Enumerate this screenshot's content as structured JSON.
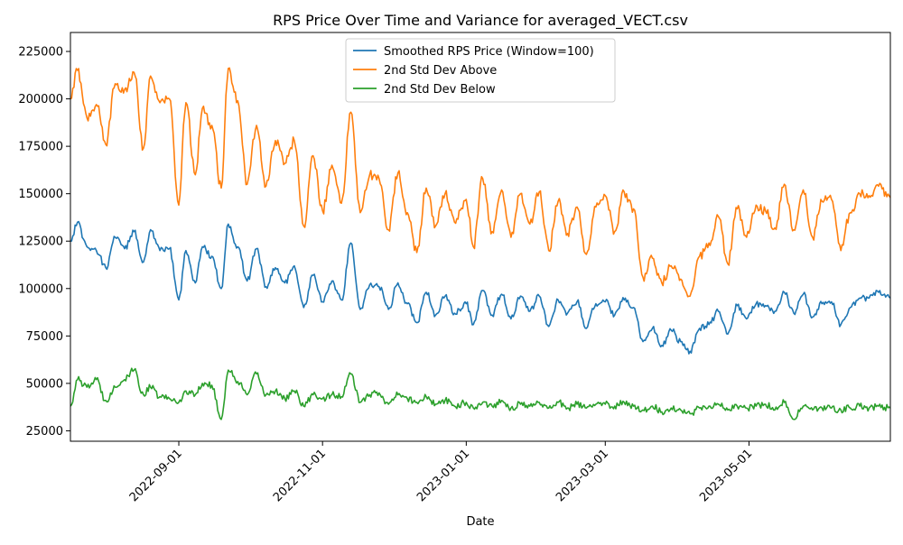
{
  "chart_data": {
    "type": "line",
    "title": "RPS Price Over Time and Variance for averaged_VECT.csv",
    "xlabel": "Date",
    "ylabel": "",
    "x_type": "date",
    "xlim": [
      "2022-07-17",
      "2023-06-30"
    ],
    "ylim": [
      19500,
      235000
    ],
    "x_ticks": [
      "2022-09-01",
      "2022-11-01",
      "2023-01-01",
      "2023-03-01",
      "2023-05-01"
    ],
    "y_ticks": [
      25000,
      50000,
      75000,
      100000,
      125000,
      150000,
      175000,
      200000,
      225000
    ],
    "grid": false,
    "legend_position": "top-center",
    "series": [
      {
        "name": "Smoothed RPS Price (Window=100)",
        "color": "#1f77b4",
        "points": [
          [
            "2022-07-17",
            125000
          ],
          [
            "2022-07-20",
            135000
          ],
          [
            "2022-07-24",
            122000
          ],
          [
            "2022-07-28",
            120000
          ],
          [
            "2022-08-01",
            111000
          ],
          [
            "2022-08-05",
            127000
          ],
          [
            "2022-08-09",
            121000
          ],
          [
            "2022-08-13",
            130000
          ],
          [
            "2022-08-17",
            114000
          ],
          [
            "2022-08-20",
            131000
          ],
          [
            "2022-08-24",
            120000
          ],
          [
            "2022-08-28",
            121000
          ],
          [
            "2022-09-01",
            94000
          ],
          [
            "2022-09-04",
            120000
          ],
          [
            "2022-09-08",
            103000
          ],
          [
            "2022-09-11",
            122000
          ],
          [
            "2022-09-15",
            117000
          ],
          [
            "2022-09-19",
            100000
          ],
          [
            "2022-09-22",
            134000
          ],
          [
            "2022-09-26",
            122000
          ],
          [
            "2022-09-30",
            104000
          ],
          [
            "2022-10-04",
            121000
          ],
          [
            "2022-10-08",
            101000
          ],
          [
            "2022-10-12",
            111000
          ],
          [
            "2022-10-16",
            103000
          ],
          [
            "2022-10-20",
            112000
          ],
          [
            "2022-10-24",
            90000
          ],
          [
            "2022-10-28",
            107000
          ],
          [
            "2022-11-01",
            93000
          ],
          [
            "2022-11-05",
            104000
          ],
          [
            "2022-11-09",
            94000
          ],
          [
            "2022-11-13",
            124000
          ],
          [
            "2022-11-17",
            89000
          ],
          [
            "2022-11-21",
            102000
          ],
          [
            "2022-11-25",
            101000
          ],
          [
            "2022-11-29",
            89000
          ],
          [
            "2022-12-03",
            103000
          ],
          [
            "2022-12-07",
            92000
          ],
          [
            "2022-12-11",
            82000
          ],
          [
            "2022-12-15",
            98000
          ],
          [
            "2022-12-19",
            86000
          ],
          [
            "2022-12-23",
            96000
          ],
          [
            "2022-12-27",
            87000
          ],
          [
            "2023-01-01",
            92000
          ],
          [
            "2023-01-04",
            81000
          ],
          [
            "2023-01-08",
            99000
          ],
          [
            "2023-01-12",
            86000
          ],
          [
            "2023-01-16",
            97000
          ],
          [
            "2023-01-20",
            84000
          ],
          [
            "2023-01-24",
            96000
          ],
          [
            "2023-01-28",
            88000
          ],
          [
            "2023-02-01",
            96000
          ],
          [
            "2023-02-05",
            80000
          ],
          [
            "2023-02-09",
            94000
          ],
          [
            "2023-02-13",
            87000
          ],
          [
            "2023-02-17",
            93000
          ],
          [
            "2023-02-21",
            79000
          ],
          [
            "2023-02-25",
            92000
          ],
          [
            "2023-03-01",
            93000
          ],
          [
            "2023-03-05",
            86000
          ],
          [
            "2023-03-09",
            94000
          ],
          [
            "2023-03-13",
            90000
          ],
          [
            "2023-03-17",
            72000
          ],
          [
            "2023-03-21",
            79000
          ],
          [
            "2023-03-25",
            70000
          ],
          [
            "2023-03-29",
            78000
          ],
          [
            "2023-04-02",
            72000
          ],
          [
            "2023-04-06",
            67000
          ],
          [
            "2023-04-10",
            79000
          ],
          [
            "2023-04-14",
            81000
          ],
          [
            "2023-04-18",
            88000
          ],
          [
            "2023-04-22",
            76000
          ],
          [
            "2023-04-26",
            91000
          ],
          [
            "2023-04-30",
            84000
          ],
          [
            "2023-05-04",
            92000
          ],
          [
            "2023-05-08",
            91000
          ],
          [
            "2023-05-12",
            88000
          ],
          [
            "2023-05-16",
            98000
          ],
          [
            "2023-05-20",
            87000
          ],
          [
            "2023-05-24",
            97000
          ],
          [
            "2023-05-28",
            85000
          ],
          [
            "2023-06-01",
            92000
          ],
          [
            "2023-06-05",
            93000
          ],
          [
            "2023-06-09",
            81000
          ],
          [
            "2023-06-13",
            90000
          ],
          [
            "2023-06-17",
            95000
          ],
          [
            "2023-06-21",
            95000
          ],
          [
            "2023-06-25",
            98000
          ],
          [
            "2023-06-30",
            95000
          ]
        ]
      },
      {
        "name": "2nd Std Dev Above",
        "color": "#ff7f0e",
        "points": [
          [
            "2022-07-17",
            200000
          ],
          [
            "2022-07-20",
            215000
          ],
          [
            "2022-07-24",
            190000
          ],
          [
            "2022-07-28",
            197000
          ],
          [
            "2022-08-01",
            176000
          ],
          [
            "2022-08-05",
            208000
          ],
          [
            "2022-08-09",
            205000
          ],
          [
            "2022-08-13",
            214000
          ],
          [
            "2022-08-17",
            174000
          ],
          [
            "2022-08-20",
            212000
          ],
          [
            "2022-08-24",
            198000
          ],
          [
            "2022-08-28",
            200000
          ],
          [
            "2022-09-01",
            144000
          ],
          [
            "2022-09-04",
            198000
          ],
          [
            "2022-09-08",
            160000
          ],
          [
            "2022-09-11",
            195000
          ],
          [
            "2022-09-15",
            186000
          ],
          [
            "2022-09-19",
            153000
          ],
          [
            "2022-09-22",
            216000
          ],
          [
            "2022-09-26",
            199000
          ],
          [
            "2022-09-30",
            155000
          ],
          [
            "2022-10-04",
            186000
          ],
          [
            "2022-10-08",
            154000
          ],
          [
            "2022-10-12",
            178000
          ],
          [
            "2022-10-16",
            166000
          ],
          [
            "2022-10-20",
            178000
          ],
          [
            "2022-10-24",
            133000
          ],
          [
            "2022-10-28",
            170000
          ],
          [
            "2022-11-01",
            141000
          ],
          [
            "2022-11-05",
            165000
          ],
          [
            "2022-11-09",
            145000
          ],
          [
            "2022-11-13",
            193000
          ],
          [
            "2022-11-17",
            140000
          ],
          [
            "2022-11-21",
            160000
          ],
          [
            "2022-11-25",
            158000
          ],
          [
            "2022-11-29",
            131000
          ],
          [
            "2022-12-03",
            161000
          ],
          [
            "2022-12-07",
            140000
          ],
          [
            "2022-12-11",
            119000
          ],
          [
            "2022-12-15",
            153000
          ],
          [
            "2022-12-19",
            133000
          ],
          [
            "2022-12-23",
            150000
          ],
          [
            "2022-12-27",
            135000
          ],
          [
            "2023-01-01",
            147000
          ],
          [
            "2023-01-04",
            122000
          ],
          [
            "2023-01-08",
            158000
          ],
          [
            "2023-01-12",
            130000
          ],
          [
            "2023-01-16",
            152000
          ],
          [
            "2023-01-20",
            127000
          ],
          [
            "2023-01-24",
            150000
          ],
          [
            "2023-01-28",
            134000
          ],
          [
            "2023-02-01",
            151000
          ],
          [
            "2023-02-05",
            120000
          ],
          [
            "2023-02-09",
            146000
          ],
          [
            "2023-02-13",
            129000
          ],
          [
            "2023-02-17",
            143000
          ],
          [
            "2023-02-21",
            118000
          ],
          [
            "2023-02-25",
            143000
          ],
          [
            "2023-03-01",
            149000
          ],
          [
            "2023-03-05",
            130000
          ],
          [
            "2023-03-09",
            151000
          ],
          [
            "2023-03-13",
            142000
          ],
          [
            "2023-03-17",
            106000
          ],
          [
            "2023-03-21",
            116000
          ],
          [
            "2023-03-25",
            103000
          ],
          [
            "2023-03-29",
            112000
          ],
          [
            "2023-04-02",
            105000
          ],
          [
            "2023-04-06",
            96000
          ],
          [
            "2023-04-10",
            117000
          ],
          [
            "2023-04-14",
            124000
          ],
          [
            "2023-04-18",
            138000
          ],
          [
            "2023-04-22",
            113000
          ],
          [
            "2023-04-26",
            142000
          ],
          [
            "2023-04-30",
            127000
          ],
          [
            "2023-05-04",
            144000
          ],
          [
            "2023-05-08",
            141000
          ],
          [
            "2023-05-12",
            132000
          ],
          [
            "2023-05-16",
            155000
          ],
          [
            "2023-05-20",
            131000
          ],
          [
            "2023-05-24",
            152000
          ],
          [
            "2023-05-28",
            127000
          ],
          [
            "2023-06-01",
            146000
          ],
          [
            "2023-06-05",
            147000
          ],
          [
            "2023-06-09",
            120000
          ],
          [
            "2023-06-13",
            140000
          ],
          [
            "2023-06-17",
            150000
          ],
          [
            "2023-06-21",
            149000
          ],
          [
            "2023-06-25",
            154000
          ],
          [
            "2023-06-30",
            148000
          ]
        ]
      },
      {
        "name": "2nd Std Dev Below",
        "color": "#2ca02c",
        "points": [
          [
            "2022-07-17",
            38000
          ],
          [
            "2022-07-20",
            52000
          ],
          [
            "2022-07-24",
            48000
          ],
          [
            "2022-07-28",
            52000
          ],
          [
            "2022-08-01",
            41000
          ],
          [
            "2022-08-05",
            48000
          ],
          [
            "2022-08-09",
            52000
          ],
          [
            "2022-08-13",
            57000
          ],
          [
            "2022-08-17",
            44000
          ],
          [
            "2022-08-20",
            48000
          ],
          [
            "2022-08-24",
            43000
          ],
          [
            "2022-08-28",
            42000
          ],
          [
            "2022-09-01",
            40000
          ],
          [
            "2022-09-04",
            46000
          ],
          [
            "2022-09-08",
            44000
          ],
          [
            "2022-09-11",
            50000
          ],
          [
            "2022-09-15",
            49000
          ],
          [
            "2022-09-19",
            31000
          ],
          [
            "2022-09-22",
            57000
          ],
          [
            "2022-09-26",
            51000
          ],
          [
            "2022-09-30",
            44000
          ],
          [
            "2022-10-04",
            55000
          ],
          [
            "2022-10-08",
            44000
          ],
          [
            "2022-10-12",
            46000
          ],
          [
            "2022-10-16",
            42000
          ],
          [
            "2022-10-20",
            46000
          ],
          [
            "2022-10-24",
            38000
          ],
          [
            "2022-10-28",
            44000
          ],
          [
            "2022-11-01",
            42000
          ],
          [
            "2022-11-05",
            44000
          ],
          [
            "2022-11-09",
            43000
          ],
          [
            "2022-11-13",
            55000
          ],
          [
            "2022-11-17",
            40000
          ],
          [
            "2022-11-21",
            44000
          ],
          [
            "2022-11-25",
            45000
          ],
          [
            "2022-11-29",
            39000
          ],
          [
            "2022-12-03",
            44000
          ],
          [
            "2022-12-07",
            42000
          ],
          [
            "2022-12-11",
            40000
          ],
          [
            "2022-12-15",
            43000
          ],
          [
            "2022-12-19",
            39000
          ],
          [
            "2022-12-23",
            41000
          ],
          [
            "2022-12-27",
            38000
          ],
          [
            "2023-01-01",
            40000
          ],
          [
            "2023-01-04",
            37000
          ],
          [
            "2023-01-08",
            40000
          ],
          [
            "2023-01-12",
            38000
          ],
          [
            "2023-01-16",
            41000
          ],
          [
            "2023-01-20",
            37000
          ],
          [
            "2023-01-24",
            39000
          ],
          [
            "2023-01-28",
            38000
          ],
          [
            "2023-02-01",
            40000
          ],
          [
            "2023-02-05",
            37000
          ],
          [
            "2023-02-09",
            40000
          ],
          [
            "2023-02-13",
            37000
          ],
          [
            "2023-02-17",
            39000
          ],
          [
            "2023-02-21",
            37000
          ],
          [
            "2023-02-25",
            39000
          ],
          [
            "2023-03-01",
            39000
          ],
          [
            "2023-03-05",
            38000
          ],
          [
            "2023-03-09",
            40000
          ],
          [
            "2023-03-13",
            38000
          ],
          [
            "2023-03-17",
            36000
          ],
          [
            "2023-03-21",
            38000
          ],
          [
            "2023-03-25",
            35000
          ],
          [
            "2023-03-29",
            37000
          ],
          [
            "2023-04-02",
            36000
          ],
          [
            "2023-04-06",
            34000
          ],
          [
            "2023-04-10",
            37000
          ],
          [
            "2023-04-14",
            38000
          ],
          [
            "2023-04-18",
            39000
          ],
          [
            "2023-04-22",
            36000
          ],
          [
            "2023-04-26",
            38000
          ],
          [
            "2023-04-30",
            37000
          ],
          [
            "2023-05-04",
            38000
          ],
          [
            "2023-05-08",
            39000
          ],
          [
            "2023-05-12",
            36000
          ],
          [
            "2023-05-16",
            40000
          ],
          [
            "2023-05-20",
            31000
          ],
          [
            "2023-05-24",
            38000
          ],
          [
            "2023-05-28",
            36000
          ],
          [
            "2023-06-01",
            37000
          ],
          [
            "2023-06-05",
            37000
          ],
          [
            "2023-06-09",
            36000
          ],
          [
            "2023-06-13",
            37000
          ],
          [
            "2023-06-17",
            38000
          ],
          [
            "2023-06-21",
            37000
          ],
          [
            "2023-06-25",
            38000
          ],
          [
            "2023-06-30",
            37000
          ]
        ]
      }
    ]
  }
}
